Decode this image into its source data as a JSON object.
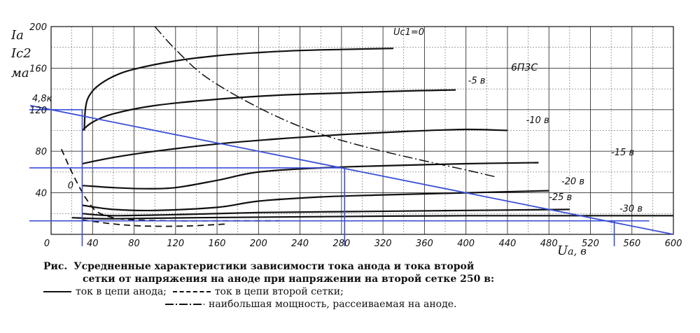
{
  "chart_data": {
    "type": "line",
    "tube_label": "6П3С",
    "x_axis": {
      "label": "Ua, в",
      "label_main": "U",
      "label_sub": "a",
      "label_unit": ", в",
      "range": [
        0,
        600
      ],
      "ticks": [
        "0",
        "40",
        "80",
        "120",
        "160",
        "200",
        "240",
        "280",
        "320",
        "360",
        "400",
        "440",
        "480",
        "520",
        "560",
        "600"
      ],
      "grid": true
    },
    "y_axis": {
      "label_lines": [
        "Iа",
        "Ic2",
        "ма"
      ],
      "range": [
        0,
        200
      ],
      "ticks": [
        "40",
        "80",
        "120",
        "160",
        "200"
      ],
      "grid": true
    },
    "grid_label_curve": "Uc1=0",
    "series": [
      {
        "name": "Uc1=0",
        "label": "Uc1=0",
        "kind": "anode",
        "points": [
          [
            32,
            100
          ],
          [
            33,
            120
          ],
          [
            36,
            132
          ],
          [
            44,
            142
          ],
          [
            60,
            152
          ],
          [
            80,
            159
          ],
          [
            120,
            167
          ],
          [
            160,
            172
          ],
          [
            200,
            175
          ],
          [
            240,
            177
          ],
          [
            280,
            178
          ],
          [
            330,
            179
          ]
        ]
      },
      {
        "name": "-5в",
        "label": "-5 в",
        "kind": "anode",
        "points": [
          [
            30,
            100
          ],
          [
            40,
            108
          ],
          [
            60,
            116
          ],
          [
            100,
            124
          ],
          [
            160,
            130
          ],
          [
            220,
            134
          ],
          [
            280,
            136
          ],
          [
            340,
            138
          ],
          [
            390,
            139
          ]
        ]
      },
      {
        "name": "-10в",
        "label": "-10 в",
        "kind": "anode",
        "points": [
          [
            30,
            68
          ],
          [
            60,
            74
          ],
          [
            100,
            80
          ],
          [
            160,
            87
          ],
          [
            220,
            92
          ],
          [
            280,
            96
          ],
          [
            340,
            99
          ],
          [
            400,
            101
          ],
          [
            440,
            100
          ]
        ]
      },
      {
        "name": "-15в",
        "label": "-15 в",
        "kind": "anode",
        "points": [
          [
            30,
            47
          ],
          [
            60,
            45
          ],
          [
            90,
            44
          ],
          [
            120,
            45
          ],
          [
            160,
            52
          ],
          [
            200,
            60
          ],
          [
            260,
            64
          ],
          [
            320,
            66
          ],
          [
            400,
            68
          ],
          [
            470,
            69
          ]
        ]
      },
      {
        "name": "-20в",
        "label": "-20 в",
        "kind": "anode",
        "points": [
          [
            30,
            28
          ],
          [
            60,
            24
          ],
          [
            100,
            23
          ],
          [
            160,
            26
          ],
          [
            200,
            32
          ],
          [
            260,
            36
          ],
          [
            320,
            38
          ],
          [
            400,
            40
          ],
          [
            480,
            42
          ]
        ]
      },
      {
        "name": "-25в",
        "label": "-25 в",
        "kind": "anode",
        "points": [
          [
            30,
            20
          ],
          [
            60,
            18
          ],
          [
            120,
            19
          ],
          [
            200,
            21
          ],
          [
            300,
            22
          ],
          [
            400,
            23
          ],
          [
            500,
            24
          ]
        ]
      },
      {
        "name": "-30в",
        "label": "-30 в",
        "kind": "anode",
        "points": [
          [
            20,
            16
          ],
          [
            60,
            15
          ],
          [
            140,
            16
          ],
          [
            250,
            17
          ],
          [
            400,
            18
          ],
          [
            520,
            18
          ],
          [
            600,
            18
          ]
        ]
      },
      {
        "name": "Ic2",
        "label": "0",
        "kind": "screen",
        "points": [
          [
            10,
            82
          ],
          [
            18,
            64
          ],
          [
            26,
            48
          ],
          [
            34,
            34
          ],
          [
            44,
            22
          ],
          [
            60,
            16
          ],
          [
            80,
            14
          ],
          [
            120,
            13
          ],
          [
            160,
            13
          ],
          [
            220,
            13
          ]
        ]
      },
      {
        "name": "Ic2 low",
        "label": "",
        "kind": "screen",
        "points": [
          [
            30,
            14
          ],
          [
            60,
            10
          ],
          [
            90,
            8
          ],
          [
            130,
            8
          ],
          [
            170,
            10
          ]
        ]
      },
      {
        "name": "Pmax",
        "label": "",
        "kind": "power",
        "points": [
          [
            100,
            200
          ],
          [
            120,
            178
          ],
          [
            150,
            151
          ],
          [
            200,
            122
          ],
          [
            250,
            100
          ],
          [
            300,
            85
          ],
          [
            350,
            73
          ],
          [
            400,
            62
          ],
          [
            430,
            55
          ]
        ]
      }
    ],
    "load_line": {
      "label": "4,8к",
      "x0": 0,
      "y0": 120,
      "x1": 600,
      "y1": 0
    },
    "operating_lines": {
      "horizontal": [
        120,
        64,
        13
      ],
      "vertical": [
        30,
        283,
        543
      ]
    }
  },
  "caption": {
    "prefix": "Рис.",
    "line1": "Усредненные характеристики зависимости тока анода и тока второй",
    "line2": "сетки от напряжения на аноде при напряжении на второй сетке 250 в:",
    "legend_anode": "ток в цепи анода;",
    "legend_screen": "ток в цепи второй сетки;",
    "legend_power": "наибольшая мощность, рассеиваемая на аноде."
  }
}
